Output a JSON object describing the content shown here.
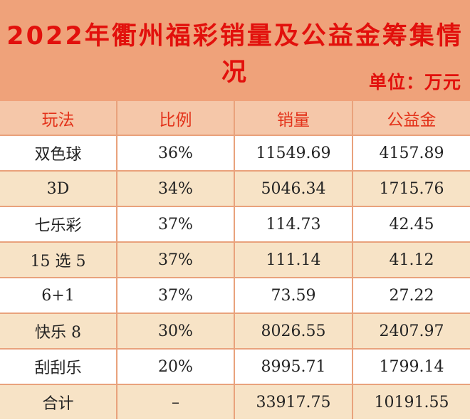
{
  "title": "2022年衢州福彩销量及公益金筹集情况",
  "unit": "单位：万元",
  "columns": [
    "玩法",
    "比例",
    "销量",
    "公益金"
  ],
  "rows": [
    {
      "game": "双色球",
      "ratio": "36%",
      "sales": "11549.69",
      "fund": "4157.89"
    },
    {
      "game": "3D",
      "ratio": "34%",
      "sales": "5046.34",
      "fund": "1715.76"
    },
    {
      "game": "七乐彩",
      "ratio": "37%",
      "sales": "114.73",
      "fund": "42.45"
    },
    {
      "game": "15 选 5",
      "ratio": "37%",
      "sales": "111.14",
      "fund": "41.12"
    },
    {
      "game": "6+1",
      "ratio": "37%",
      "sales": "73.59",
      "fund": "27.22"
    },
    {
      "game": "快乐 8",
      "ratio": "30%",
      "sales": "8026.55",
      "fund": "2407.97"
    },
    {
      "game": "刮刮乐",
      "ratio": "20%",
      "sales": "8995.71",
      "fund": "1799.14"
    }
  ],
  "total": {
    "label": "合计",
    "ratio": "–",
    "sales": "33917.75",
    "fund": "10191.55"
  },
  "colors": {
    "header_bg": "#efa27a",
    "title": "#e2100c",
    "column_header_bg": "#f5c7a9",
    "row_alt": "#f7e3c6"
  }
}
